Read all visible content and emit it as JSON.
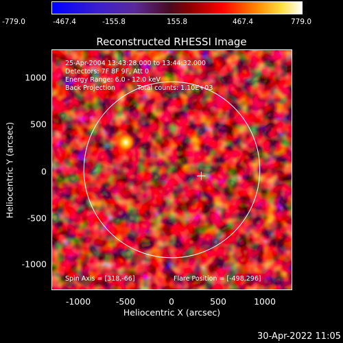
{
  "colorbar": {
    "ticks": [
      "-779.0",
      "-467.4",
      "-155.8",
      "155.8",
      "467.4",
      "779.0"
    ],
    "colors": [
      "#0000ff",
      "#6a1ea8",
      "#8b0000",
      "#ff0000",
      "#ffa500",
      "#ffffff"
    ]
  },
  "title": "Reconstructed RHESSI Image",
  "info": {
    "time_range": "25-Apr-2004 13:43:28.000 to 13:44:32.000",
    "detectors": "Detectors: 7F 8F 9F, Att 0",
    "energy": "Energy Range: 6.0 - 12.0 keV",
    "method": "Back Projection",
    "counts": "Total counts: 1.10E+03",
    "spin_axis": "Spin Axis = [318,-66]",
    "flare_position": "Flare Position = [-498,296]"
  },
  "axes": {
    "xlabel": "Heliocentric X (arcsec)",
    "ylabel": "Heliocentric Y (arcsec)",
    "xticks": [
      "-1000",
      "-500",
      "0",
      "500",
      "1000"
    ],
    "yticks": [
      "1000",
      "500",
      "0",
      "-500",
      "-1000"
    ],
    "xrange": [
      -1300,
      1300
    ],
    "yrange": [
      -1300,
      1300
    ]
  },
  "overlay": {
    "limb_radius_arcsec": 950,
    "cross_position": [
      318,
      -66
    ],
    "bright_source": [
      -498,
      296
    ]
  },
  "timestamp": "30-Apr-2022 11:05"
}
